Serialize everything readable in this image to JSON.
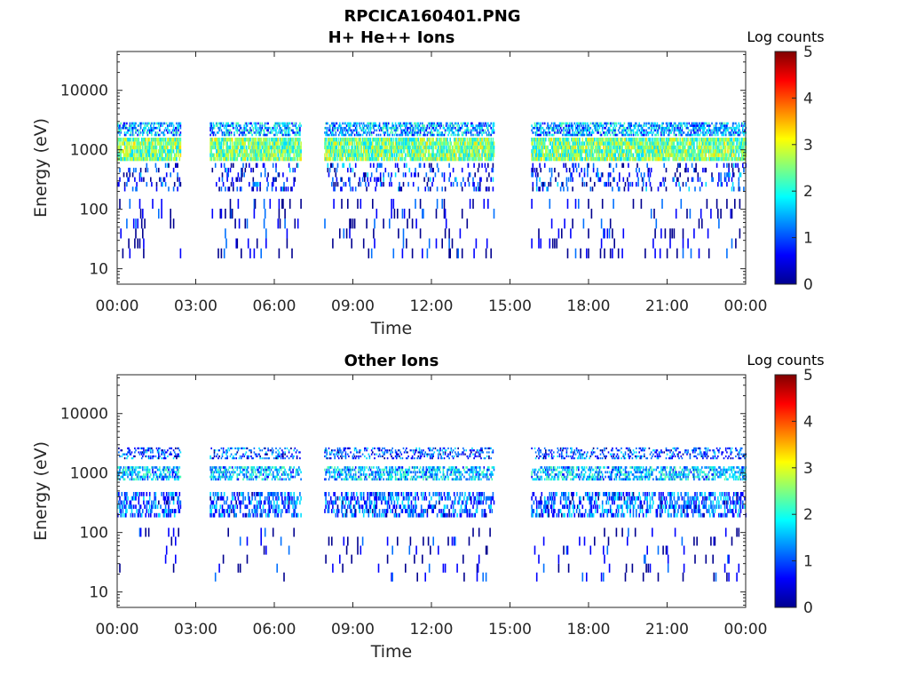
{
  "figure_title": "RPCICA160401.PNG",
  "colormap": [
    "#00008f",
    "#0000ff",
    "#0070ff",
    "#00dfff",
    "#50ffaf",
    "#c0ff40",
    "#ffe000",
    "#ff8000",
    "#ff2000",
    "#800000"
  ],
  "chart_data": [
    {
      "type": "heatmap",
      "title": "H+ He++ Ions",
      "xlabel": "Time",
      "ylabel": "Energy (eV)",
      "x_ticks": [
        "00:00",
        "03:00",
        "06:00",
        "09:00",
        "12:00",
        "15:00",
        "18:00",
        "21:00",
        "00:00"
      ],
      "xlim_hours": [
        0,
        24
      ],
      "y_scale": "log",
      "ylim": [
        5.5,
        45000
      ],
      "y_ticks": [
        "10",
        "100",
        "1000",
        "10000"
      ],
      "colorbar": {
        "label": "Log counts",
        "ticks": [
          "0",
          "1",
          "2",
          "3",
          "4",
          "5"
        ],
        "range": [
          0,
          5
        ]
      },
      "data_gaps_hours": [
        [
          2.4,
          3.5
        ],
        [
          7.0,
          7.9
        ],
        [
          14.4,
          15.8
        ]
      ],
      "bands": [
        {
          "e_min": 650,
          "e_max": 1600,
          "log_counts": 2.4,
          "density": 0.85
        },
        {
          "e_min": 1700,
          "e_max": 2900,
          "log_counts": 1.4,
          "density": 0.55
        },
        {
          "e_min": 200,
          "e_max": 600,
          "log_counts": 0.7,
          "density": 0.18
        },
        {
          "e_min": 15,
          "e_max": 150,
          "log_counts": 0.4,
          "density": 0.08
        }
      ]
    },
    {
      "type": "heatmap",
      "title": "Other Ions",
      "xlabel": "Time",
      "ylabel": "Energy (eV)",
      "x_ticks": [
        "00:00",
        "03:00",
        "06:00",
        "09:00",
        "12:00",
        "15:00",
        "18:00",
        "21:00",
        "00:00"
      ],
      "xlim_hours": [
        0,
        24
      ],
      "y_scale": "log",
      "ylim": [
        5.5,
        45000
      ],
      "y_ticks": [
        "10",
        "100",
        "1000",
        "10000"
      ],
      "colorbar": {
        "label": "Log counts",
        "ticks": [
          "0",
          "1",
          "2",
          "3",
          "4",
          "5"
        ],
        "range": [
          0,
          5
        ]
      },
      "data_gaps_hours": [
        [
          2.4,
          3.5
        ],
        [
          7.0,
          7.9
        ],
        [
          14.4,
          15.8
        ]
      ],
      "bands": [
        {
          "e_min": 750,
          "e_max": 1300,
          "log_counts": 1.5,
          "density": 0.5
        },
        {
          "e_min": 1700,
          "e_max": 2700,
          "log_counts": 0.9,
          "density": 0.3
        },
        {
          "e_min": 180,
          "e_max": 480,
          "log_counts": 1.0,
          "density": 0.4
        },
        {
          "e_min": 15,
          "e_max": 120,
          "log_counts": 0.3,
          "density": 0.05
        }
      ]
    }
  ]
}
